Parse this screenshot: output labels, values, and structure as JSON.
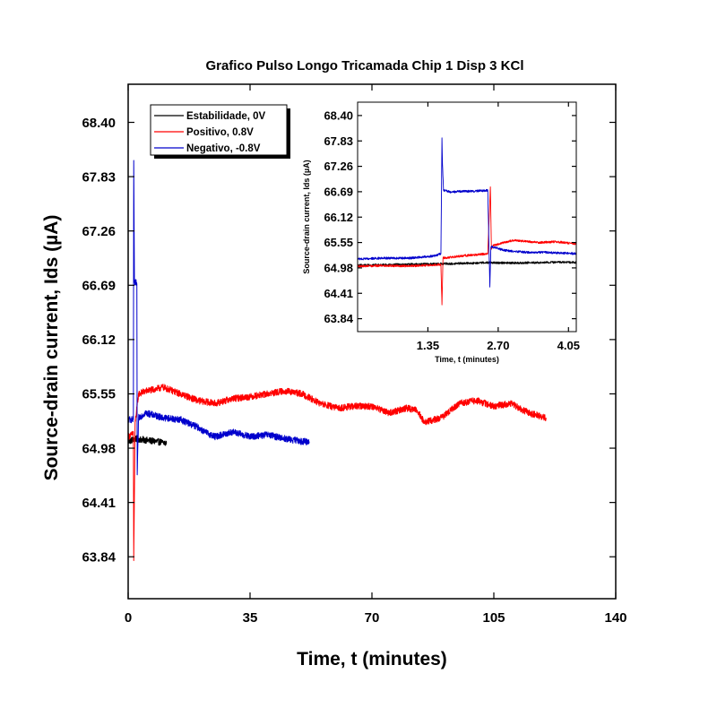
{
  "chart_data": [
    {
      "type": "line",
      "title": "Grafico Pulso Longo Tricamada Chip 1 Disp 3 KCl",
      "xlabel": "Time, t (minutes)",
      "ylabel": "Source-drain current, Ids (µA)",
      "xlim": [
        0,
        140
      ],
      "ylim": [
        63.4,
        68.8
      ],
      "xticks": [
        0,
        35,
        70,
        105,
        140
      ],
      "xtick_labels": [
        "0",
        "35",
        "70",
        "105",
        "140"
      ],
      "yticks": [
        63.84,
        64.41,
        64.98,
        65.55,
        66.12,
        66.69,
        67.26,
        67.83,
        68.4
      ],
      "ytick_labels": [
        "63.84",
        "64.41",
        "64.98",
        "65.55",
        "66.12",
        "66.69",
        "67.26",
        "67.83",
        "68.40"
      ],
      "legend_position": "top-left",
      "series": [
        {
          "name": "Estabilidade, 0V",
          "color": "#000000",
          "x": [
            0,
            2,
            4,
            6,
            8,
            10,
            11
          ],
          "y": [
            65.05,
            65.08,
            65.07,
            65.06,
            65.05,
            65.04,
            65.03
          ]
        },
        {
          "name": "Positivo, 0.8V",
          "color": "#ff0000",
          "x": [
            0,
            1,
            1.5,
            1.6,
            2,
            2.5,
            3,
            5,
            8,
            10,
            15,
            20,
            25,
            30,
            35,
            40,
            45,
            50,
            55,
            60,
            65,
            70,
            75,
            80,
            83,
            85,
            90,
            95,
            100,
            105,
            110,
            115,
            120
          ],
          "y": [
            65.1,
            65.12,
            65.15,
            63.8,
            65.25,
            65.4,
            65.55,
            65.58,
            65.6,
            65.62,
            65.55,
            65.48,
            65.45,
            65.5,
            65.52,
            65.55,
            65.58,
            65.55,
            65.45,
            65.4,
            65.42,
            65.42,
            65.35,
            65.4,
            65.38,
            65.25,
            65.3,
            65.45,
            65.48,
            65.42,
            65.45,
            65.35,
            65.3
          ]
        },
        {
          "name": "Negativo, -0.8V",
          "color": "#0000cc",
          "x": [
            0,
            1,
            1.5,
            1.6,
            1.8,
            2,
            2.2,
            2.5,
            2.6,
            3,
            5,
            10,
            15,
            20,
            22,
            25,
            30,
            35,
            40,
            45,
            50,
            52
          ],
          "y": [
            65.28,
            65.28,
            65.28,
            68.0,
            66.72,
            66.7,
            66.72,
            66.7,
            64.7,
            65.3,
            65.35,
            65.3,
            65.28,
            65.2,
            65.15,
            65.1,
            65.15,
            65.1,
            65.12,
            65.08,
            65.05,
            65.05
          ]
        }
      ]
    },
    {
      "type": "line",
      "xlabel": "Time, t (minutes)",
      "ylabel": "Source-drain current, Ids (µA)",
      "xlim": [
        0,
        4.2
      ],
      "ylim": [
        63.55,
        68.7
      ],
      "xticks": [
        1.35,
        2.7,
        4.05
      ],
      "xtick_labels": [
        "1.35",
        "2.70",
        "4.05"
      ],
      "yticks": [
        63.84,
        64.41,
        64.98,
        65.55,
        66.12,
        66.69,
        67.26,
        67.83,
        68.4
      ],
      "ytick_labels": [
        "63.84",
        "64.41",
        "64.98",
        "65.55",
        "66.12",
        "66.69",
        "67.26",
        "67.83",
        "68.40"
      ],
      "series": [
        {
          "name": "Estabilidade, 0V",
          "color": "#000000",
          "x": [
            0,
            0.5,
            1.0,
            1.5,
            2.0,
            2.5,
            3.0,
            3.5,
            4.0,
            4.2
          ],
          "y": [
            65.04,
            65.05,
            65.06,
            65.07,
            65.08,
            65.1,
            65.09,
            65.1,
            65.11,
            65.1
          ]
        },
        {
          "name": "Positivo, 0.8V",
          "color": "#ff0000",
          "x": [
            0,
            0.5,
            1.0,
            1.5,
            1.6,
            1.62,
            1.64,
            1.8,
            2.0,
            2.3,
            2.5,
            2.55,
            2.57,
            2.6,
            2.8,
            3.0,
            3.2,
            3.5,
            3.8,
            4.2
          ],
          "y": [
            65.02,
            65.03,
            65.02,
            65.05,
            65.05,
            64.15,
            65.2,
            65.22,
            65.25,
            65.28,
            65.3,
            66.8,
            65.4,
            65.48,
            65.55,
            65.6,
            65.58,
            65.55,
            65.57,
            65.52
          ]
        },
        {
          "name": "Negativo, -0.8V",
          "color": "#0000cc",
          "x": [
            0,
            0.5,
            1.0,
            1.5,
            1.6,
            1.62,
            1.63,
            1.65,
            1.8,
            2.0,
            2.2,
            2.5,
            2.54,
            2.56,
            2.6,
            2.8,
            3.0,
            3.3,
            3.6,
            4.2
          ],
          "y": [
            65.18,
            65.2,
            65.2,
            65.25,
            65.3,
            67.9,
            67.3,
            66.72,
            66.68,
            66.7,
            66.7,
            66.72,
            64.55,
            65.45,
            65.45,
            65.38,
            65.35,
            65.33,
            65.33,
            65.3
          ]
        }
      ]
    }
  ]
}
